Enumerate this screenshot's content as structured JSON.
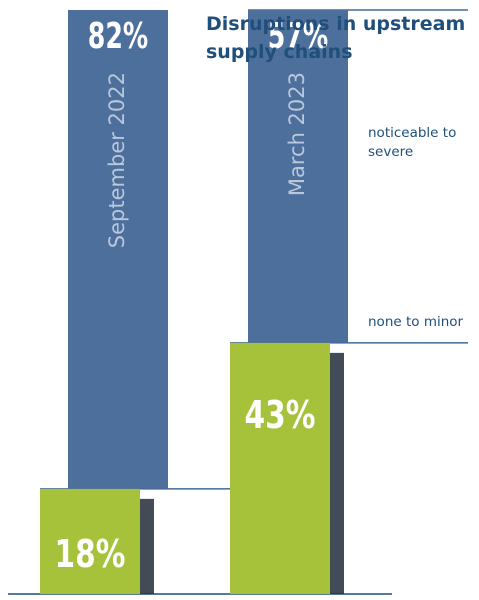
{
  "chart_data": {
    "type": "bar",
    "title": "Disruptions in upstream supply chains",
    "categories": [
      "September 2022",
      "March 2023"
    ],
    "series": [
      {
        "name": "none to minor",
        "values": [
          18,
          43
        ],
        "labels": [
          "18%",
          "43%"
        ],
        "color": "#a6c23a"
      },
      {
        "name": "noticeable to severe",
        "values": [
          82,
          57
        ],
        "labels": [
          "82%",
          "57%"
        ],
        "color": "#4d6f9c"
      }
    ],
    "legend": [
      "noticeable to severe",
      "none to minor"
    ],
    "ylim": [
      0,
      100
    ],
    "colors": {
      "title": "#1f4f7a",
      "axis": "#1f4f7a",
      "shadow": "#222b38",
      "label": "#ffffff"
    }
  }
}
